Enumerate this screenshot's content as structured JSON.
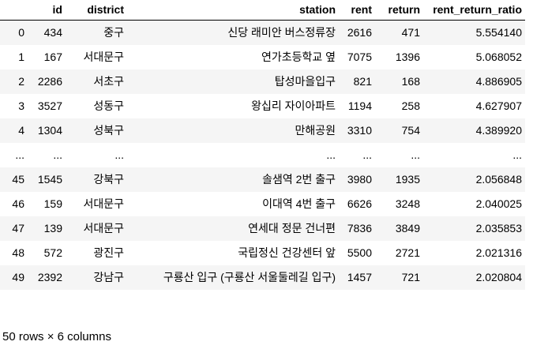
{
  "table": {
    "columns": [
      "",
      "id",
      "district",
      "station",
      "rent",
      "return",
      "rent_return_ratio"
    ],
    "rows": [
      [
        "0",
        "434",
        "중구",
        "신당 래미안 버스정류장",
        "2616",
        "471",
        "5.554140"
      ],
      [
        "1",
        "167",
        "서대문구",
        "연가초등학교 옆",
        "7075",
        "1396",
        "5.068052"
      ],
      [
        "2",
        "2286",
        "서초구",
        "탑성마을입구",
        "821",
        "168",
        "4.886905"
      ],
      [
        "3",
        "3527",
        "성동구",
        "왕십리 자이아파트",
        "1194",
        "258",
        "4.627907"
      ],
      [
        "4",
        "1304",
        "성북구",
        "만해공원",
        "3310",
        "754",
        "4.389920"
      ],
      [
        "...",
        "...",
        "...",
        "...",
        "...",
        "...",
        "..."
      ],
      [
        "45",
        "1545",
        "강북구",
        "솔샘역 2번 출구",
        "3980",
        "1935",
        "2.056848"
      ],
      [
        "46",
        "159",
        "서대문구",
        "이대역 4번 출구",
        "6626",
        "3248",
        "2.040025"
      ],
      [
        "47",
        "139",
        "서대문구",
        "연세대 정문 건너편",
        "7836",
        "3849",
        "2.035853"
      ],
      [
        "48",
        "572",
        "광진구",
        "국립정신 건강센터 앞",
        "5500",
        "2721",
        "2.021316"
      ],
      [
        "49",
        "2392",
        "강남구",
        "구룡산 입구 (구룡산 서울둘레길 입구)",
        "1457",
        "721",
        "2.020804"
      ]
    ]
  },
  "footer": {
    "shape_text": "50 rows × 6 columns"
  }
}
